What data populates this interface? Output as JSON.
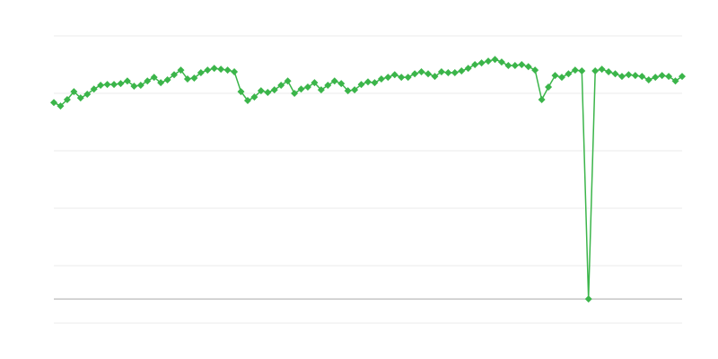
{
  "chart_data": {
    "type": "line",
    "title": "",
    "xlabel": "",
    "ylabel": "",
    "ylim": [
      -8.4,
      91.6
    ],
    "grid": true,
    "legend": "none",
    "line_color": "#3bb54a",
    "grid_color": "#ebebeb",
    "baseline_color": "#aaaaaa",
    "gridlines": [
      91.6,
      71.6,
      51.6,
      31.6,
      11.6,
      -8.4
    ],
    "baseline": 0,
    "series": [
      {
        "values": [
          68.4,
          67.2,
          69.4,
          72.2,
          70,
          71.3,
          73.1,
          74.4,
          74.7,
          74.7,
          75,
          75.9,
          74.1,
          74.4,
          75.9,
          77.2,
          75.3,
          76.3,
          78.1,
          79.7,
          76.6,
          76.9,
          78.8,
          79.7,
          80.3,
          80,
          79.7,
          79.1,
          72.2,
          69.1,
          70.3,
          72.5,
          71.9,
          72.8,
          74.4,
          75.9,
          71.6,
          73.1,
          73.8,
          75.3,
          72.8,
          74.4,
          75.9,
          75,
          72.5,
          72.8,
          74.7,
          75.6,
          75.3,
          76.6,
          77.2,
          78.1,
          77.2,
          77.2,
          78.4,
          79.1,
          78.4,
          77.5,
          79.1,
          78.8,
          78.8,
          79.4,
          80.3,
          81.6,
          82.2,
          82.8,
          83.4,
          82.5,
          81.3,
          81.3,
          81.6,
          80.9,
          79.7,
          69.4,
          73.8,
          77.8,
          77.2,
          78.4,
          79.7,
          79.4,
          0,
          79.4,
          80,
          79.1,
          78.4,
          77.5,
          78.1,
          77.8,
          77.5,
          76.3,
          77.2,
          77.8,
          77.5,
          75.9,
          77.5
        ]
      }
    ]
  }
}
